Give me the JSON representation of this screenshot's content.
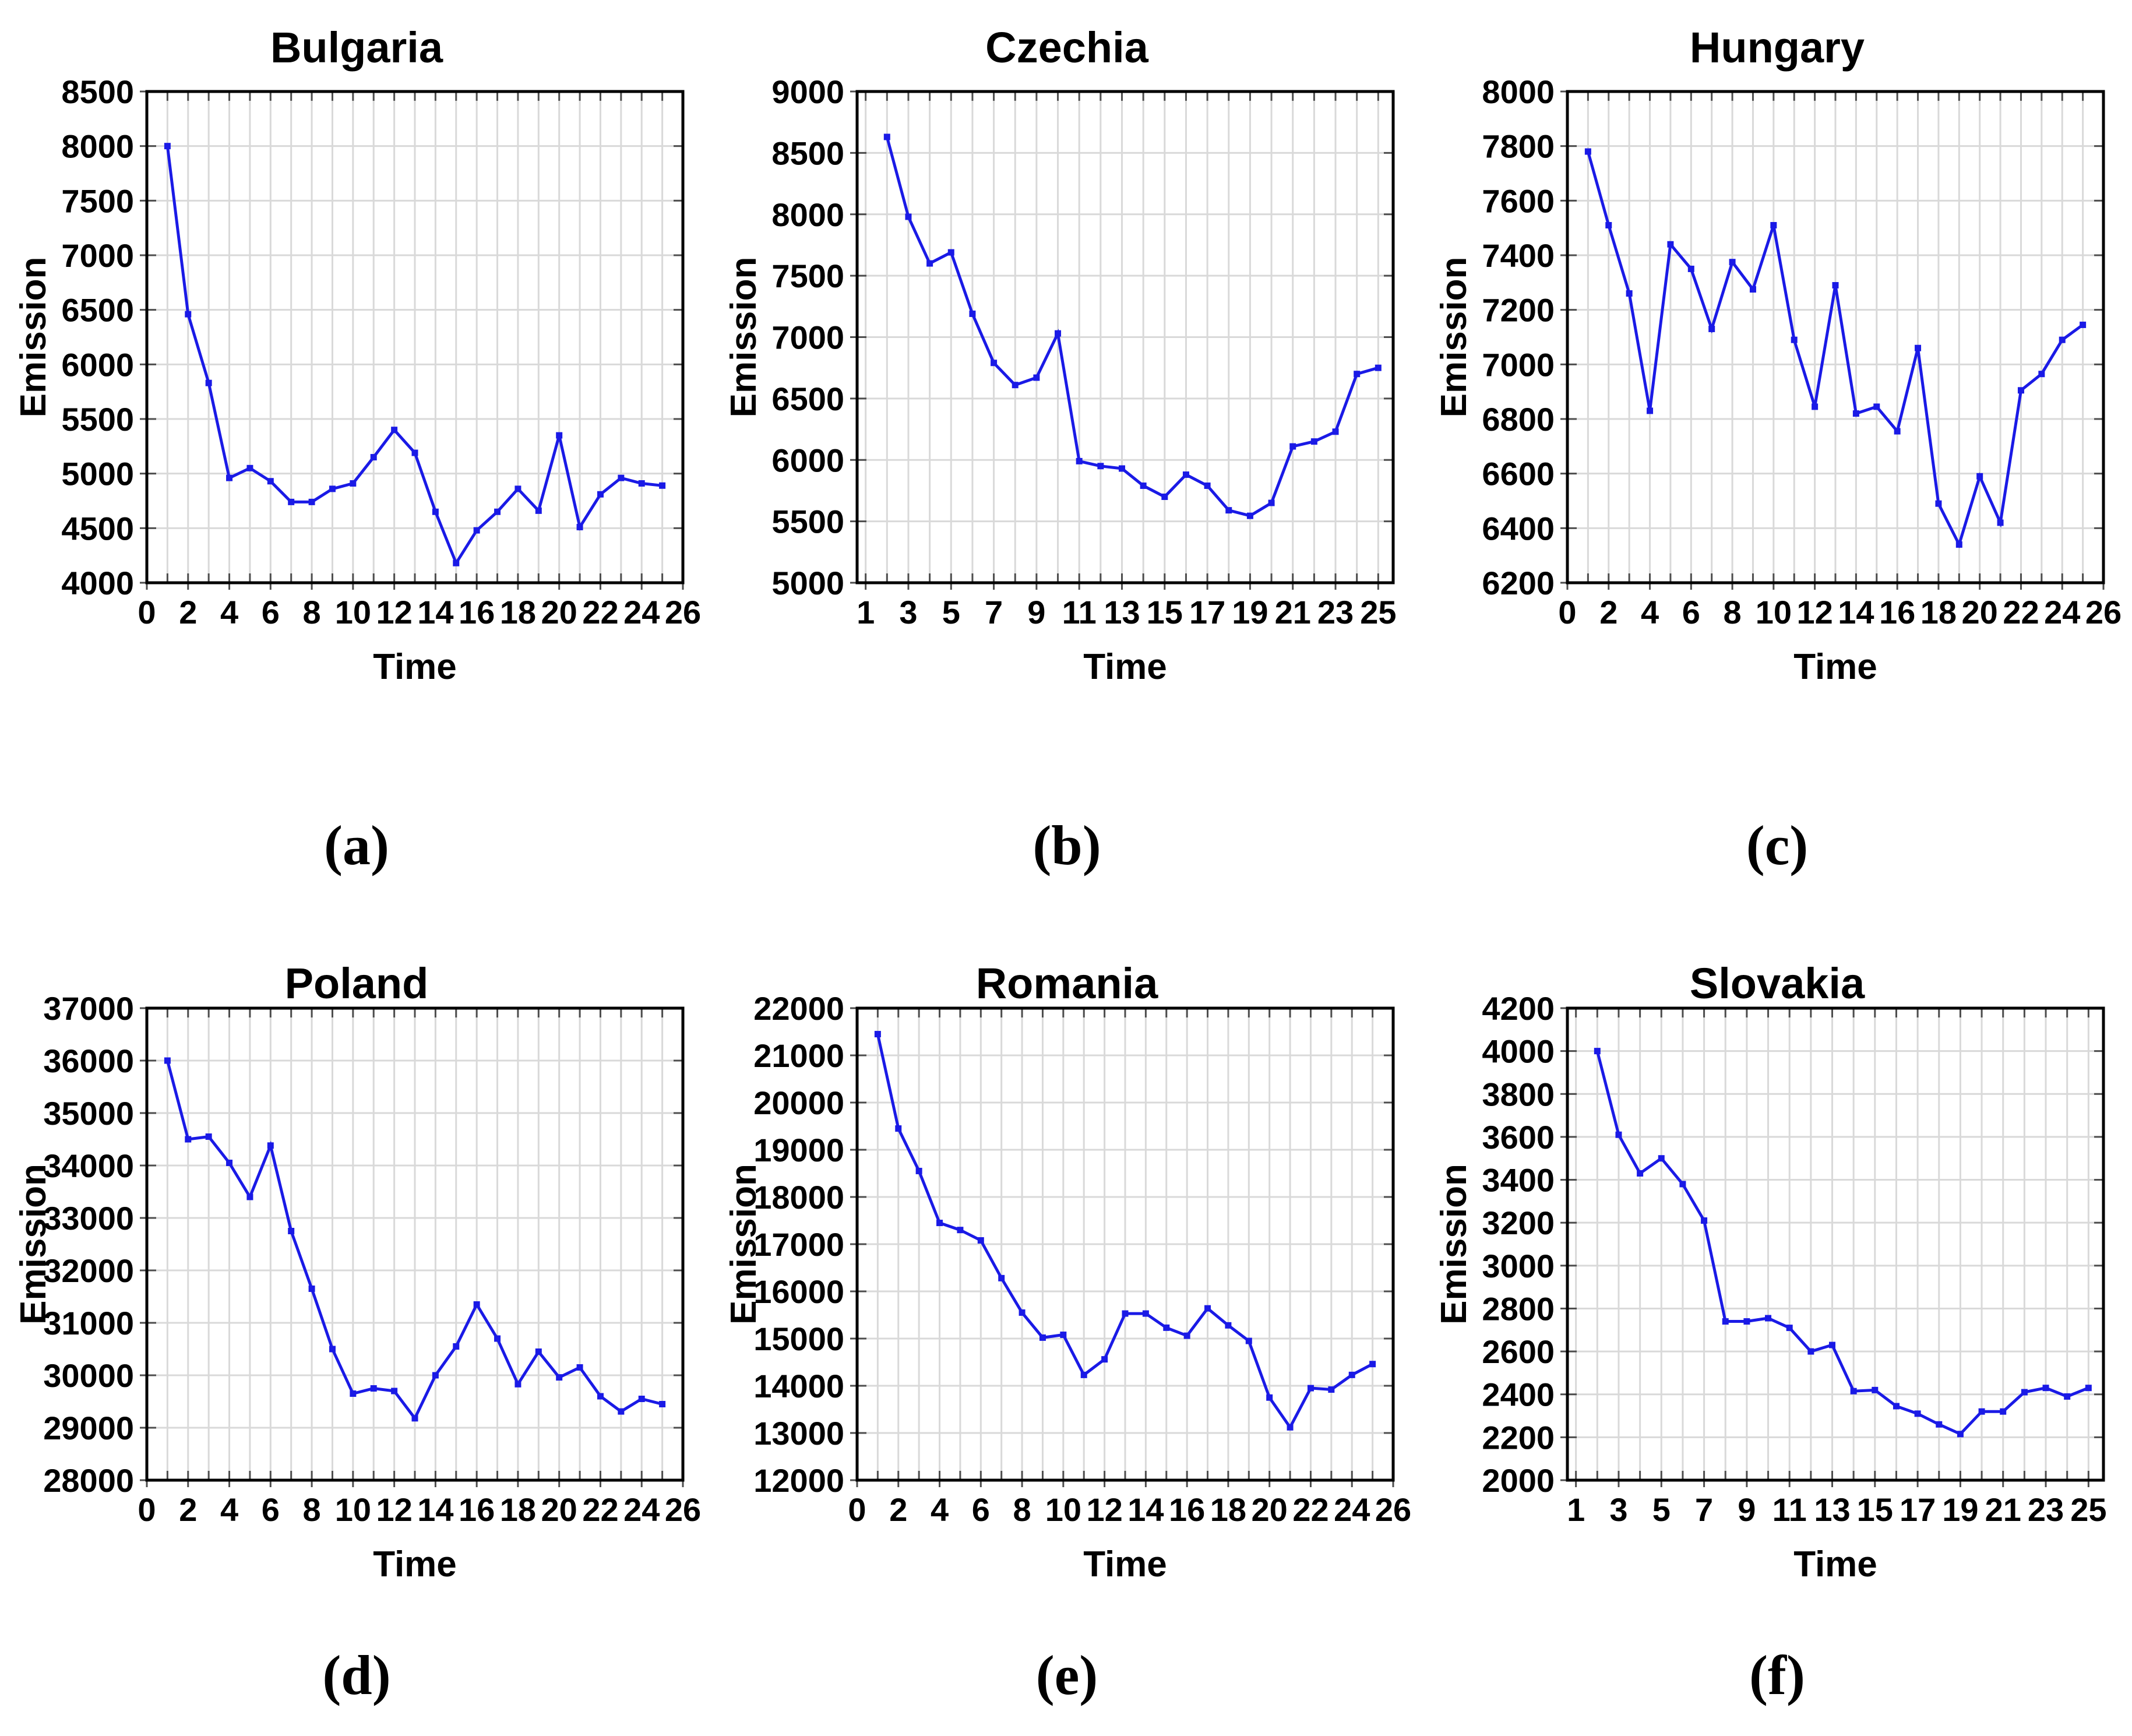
{
  "figure": {
    "background": "#ffffff",
    "grid_color": "#d9d9d9",
    "box_color": "#000000",
    "tick_color": "#4d4d4d",
    "text_color": "#000000"
  },
  "chart_data": [
    {
      "type": "line",
      "title": "Bulgaria",
      "panel": "(a)",
      "xlabel": "Time",
      "ylabel": "Emission",
      "line_color": "#1a1ae6",
      "marker": "square",
      "grid": true,
      "legend": "none",
      "xlim": [
        0,
        26
      ],
      "ylim": [
        4000,
        8500
      ],
      "xticks": [
        0,
        2,
        4,
        6,
        8,
        10,
        12,
        14,
        16,
        18,
        20,
        22,
        24,
        26
      ],
      "yticks": [
        4000,
        4500,
        5000,
        5500,
        6000,
        6500,
        7000,
        7500,
        8000,
        8500
      ],
      "x": [
        1,
        2,
        3,
        4,
        5,
        6,
        7,
        8,
        9,
        10,
        11,
        12,
        13,
        14,
        15,
        16,
        17,
        18,
        19,
        20,
        21,
        22,
        23,
        24,
        25
      ],
      "y": [
        8000,
        6460,
        5830,
        4960,
        5050,
        4930,
        4740,
        4740,
        4860,
        4910,
        5150,
        5400,
        5190,
        4650,
        4180,
        4480,
        4650,
        4860,
        4660,
        5350,
        4510,
        4810,
        4960,
        4910,
        4890
      ]
    },
    {
      "type": "line",
      "title": "Czechia",
      "panel": "(b)",
      "xlabel": "Time",
      "ylabel": "Emission",
      "line_color": "#1a1ae6",
      "marker": "square",
      "grid": true,
      "legend": "none",
      "xlim": [
        0.6,
        25.7
      ],
      "ylim": [
        5000,
        9000
      ],
      "xticks": [
        1,
        3,
        5,
        7,
        9,
        11,
        13,
        15,
        17,
        19,
        21,
        23,
        25
      ],
      "yticks": [
        5000,
        5500,
        6000,
        6500,
        7000,
        7500,
        8000,
        8500,
        9000
      ],
      "x": [
        2,
        3,
        4,
        5,
        6,
        7,
        8,
        9,
        10,
        11,
        12,
        13,
        14,
        15,
        16,
        17,
        18,
        19,
        20,
        21,
        22,
        23,
        24,
        25
      ],
      "y": [
        8630,
        7980,
        7600,
        7690,
        7190,
        6790,
        6610,
        6670,
        7030,
        5990,
        5950,
        5930,
        5790,
        5700,
        5880,
        5790,
        5590,
        5545,
        5650,
        6110,
        6150,
        6230,
        6700,
        6750
      ]
    },
    {
      "type": "line",
      "title": "Hungary",
      "panel": "(c)",
      "xlabel": "Time",
      "ylabel": "Emission",
      "line_color": "#1a1ae6",
      "marker": "square",
      "grid": true,
      "legend": "none",
      "xlim": [
        0,
        26
      ],
      "ylim": [
        6200,
        8000
      ],
      "xticks": [
        0,
        2,
        4,
        6,
        8,
        10,
        12,
        14,
        16,
        18,
        20,
        22,
        24,
        26
      ],
      "yticks": [
        6200,
        6400,
        6600,
        6800,
        7000,
        7200,
        7400,
        7600,
        7800,
        8000
      ],
      "x": [
        1,
        2,
        3,
        4,
        5,
        6,
        7,
        8,
        9,
        10,
        11,
        12,
        13,
        14,
        15,
        16,
        17,
        18,
        19,
        20,
        21,
        22,
        23,
        24,
        25
      ],
      "y": [
        7780,
        7510,
        7260,
        6830,
        7440,
        7350,
        7130,
        7375,
        7275,
        7510,
        7090,
        6845,
        7290,
        6820,
        6845,
        6755,
        7060,
        6490,
        6340,
        6590,
        6420,
        6905,
        6965,
        7090,
        7145
      ]
    },
    {
      "type": "line",
      "title": "Poland",
      "panel": "(d)",
      "xlabel": "Time",
      "ylabel": "Emission",
      "line_color": "#1a1ae6",
      "marker": "square",
      "grid": true,
      "legend": "none",
      "xlim": [
        0,
        26
      ],
      "ylim": [
        28000,
        37000
      ],
      "xticks": [
        0,
        2,
        4,
        6,
        8,
        10,
        12,
        14,
        16,
        18,
        20,
        22,
        24,
        26
      ],
      "yticks": [
        28000,
        29000,
        30000,
        31000,
        32000,
        33000,
        34000,
        35000,
        36000,
        37000
      ],
      "x": [
        1,
        2,
        3,
        4,
        5,
        6,
        7,
        8,
        9,
        10,
        11,
        12,
        13,
        14,
        15,
        16,
        17,
        18,
        19,
        20,
        21,
        22,
        23,
        24,
        25
      ],
      "y": [
        36000,
        34500,
        34550,
        34050,
        33400,
        34380,
        32750,
        31650,
        30500,
        29650,
        29750,
        29700,
        29180,
        30000,
        30550,
        31350,
        30700,
        29830,
        30450,
        29960,
        30150,
        29600,
        29310,
        29550,
        29450
      ]
    },
    {
      "type": "line",
      "title": "Romania",
      "panel": "(e)",
      "xlabel": "Time",
      "ylabel": "Emission",
      "line_color": "#1a1ae6",
      "marker": "square",
      "grid": true,
      "legend": "none",
      "xlim": [
        0,
        26
      ],
      "ylim": [
        12000,
        22000
      ],
      "xticks": [
        0,
        2,
        4,
        6,
        8,
        10,
        12,
        14,
        16,
        18,
        20,
        22,
        24,
        26
      ],
      "yticks": [
        12000,
        13000,
        14000,
        15000,
        16000,
        17000,
        18000,
        19000,
        20000,
        21000,
        22000
      ],
      "x": [
        1,
        2,
        3,
        4,
        5,
        6,
        7,
        8,
        9,
        10,
        11,
        12,
        13,
        14,
        15,
        16,
        17,
        18,
        19,
        20,
        21,
        22,
        23,
        24,
        25
      ],
      "y": [
        21450,
        19450,
        18550,
        17450,
        17300,
        17080,
        16280,
        15550,
        15020,
        15080,
        14230,
        14560,
        15530,
        15530,
        15230,
        15060,
        15640,
        15280,
        14950,
        13750,
        13120,
        13950,
        13920,
        14230,
        14460
      ]
    },
    {
      "type": "line",
      "title": "Slovakia",
      "panel": "(f)",
      "xlabel": "Time",
      "ylabel": "Emission",
      "line_color": "#1a1ae6",
      "marker": "square",
      "grid": true,
      "legend": "none",
      "xlim": [
        0.6,
        25.7
      ],
      "ylim": [
        2000,
        4200
      ],
      "xticks": [
        1,
        3,
        5,
        7,
        9,
        11,
        13,
        15,
        17,
        19,
        21,
        23,
        25
      ],
      "yticks": [
        2000,
        2200,
        2400,
        2600,
        2800,
        3000,
        3200,
        3400,
        3600,
        3800,
        4000,
        4200
      ],
      "x": [
        2,
        3,
        4,
        5,
        6,
        7,
        8,
        9,
        10,
        11,
        12,
        13,
        14,
        15,
        16,
        17,
        18,
        19,
        20,
        21,
        22,
        23,
        24,
        25
      ],
      "y": [
        4000,
        3610,
        3430,
        3500,
        3380,
        3210,
        2740,
        2740,
        2755,
        2710,
        2600,
        2630,
        2415,
        2420,
        2345,
        2310,
        2260,
        2215,
        2320,
        2320,
        2410,
        2430,
        2390,
        2430
      ]
    }
  ]
}
